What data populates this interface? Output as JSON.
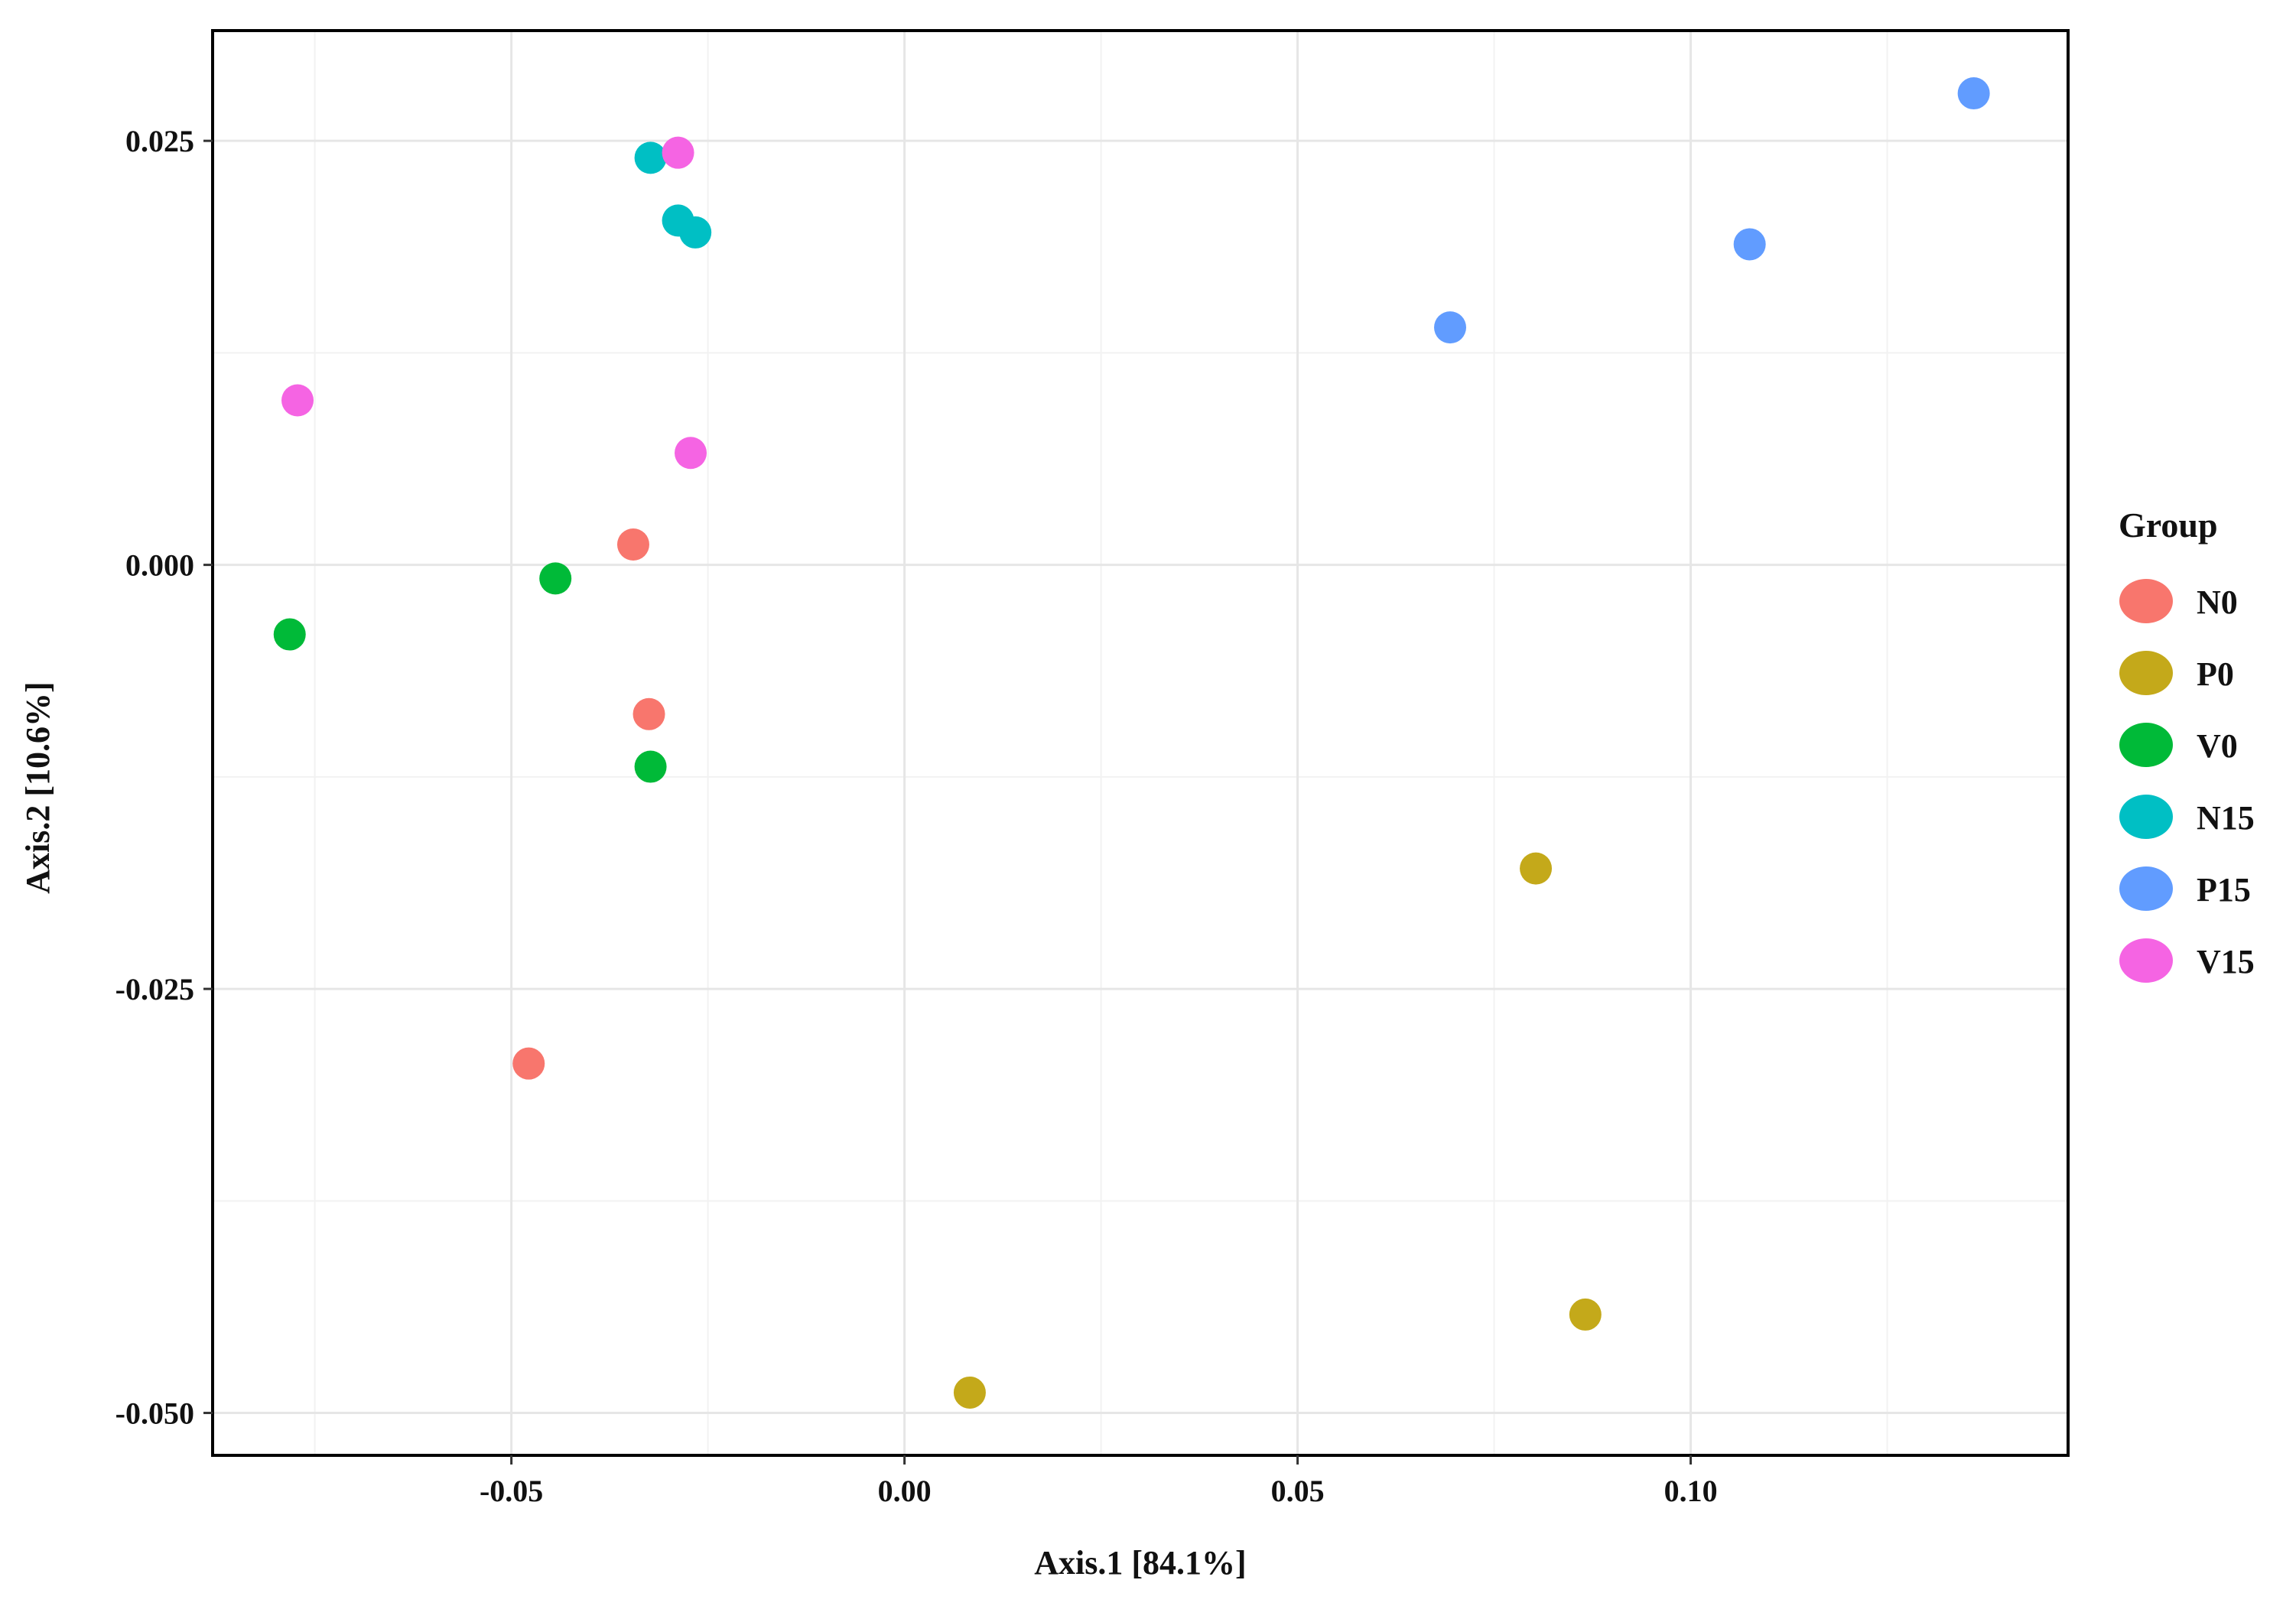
{
  "chart_data": {
    "type": "scatter",
    "xlabel": "Axis.1  [84.1%]",
    "ylabel": "Axis.2  [10.6%]",
    "xlim": [
      -0.088,
      0.148
    ],
    "ylim": [
      -0.0525,
      0.0315
    ],
    "x_ticks": [
      -0.05,
      0.0,
      0.05,
      0.1
    ],
    "x_tick_labels": [
      "-0.05",
      "0.00",
      "0.05",
      "0.10"
    ],
    "y_ticks": [
      -0.05,
      -0.025,
      0.0,
      0.025
    ],
    "y_tick_labels": [
      "-0.050",
      "-0.025",
      "0.000",
      "0.025"
    ],
    "grid": true,
    "legend_title": "Group",
    "legend_position": "right",
    "series": [
      {
        "name": "N0",
        "color": "#F8766D",
        "points": [
          [
            -0.0345,
            0.0012
          ],
          [
            -0.0325,
            -0.0088
          ],
          [
            -0.0478,
            -0.0294
          ]
        ]
      },
      {
        "name": "P0",
        "color": "#C4A91A",
        "points": [
          [
            0.0803,
            -0.0179
          ],
          [
            0.0866,
            -0.0442
          ],
          [
            0.0083,
            -0.0488
          ]
        ]
      },
      {
        "name": "V0",
        "color": "#00BA38",
        "points": [
          [
            -0.0444,
            -0.0008
          ],
          [
            -0.0782,
            -0.0041
          ],
          [
            -0.0323,
            -0.0119
          ]
        ]
      },
      {
        "name": "N15",
        "color": "#00BFC4",
        "points": [
          [
            -0.0323,
            0.024
          ],
          [
            -0.0288,
            0.0203
          ],
          [
            -0.0266,
            0.0196
          ]
        ]
      },
      {
        "name": "P15",
        "color": "#619CFF",
        "points": [
          [
            0.136,
            0.0278
          ],
          [
            0.1075,
            0.0189
          ],
          [
            0.0694,
            0.014
          ]
        ]
      },
      {
        "name": "V15",
        "color": "#F564E3",
        "points": [
          [
            -0.0288,
            0.0243
          ],
          [
            -0.0772,
            0.0097
          ],
          [
            -0.0272,
            0.0066
          ]
        ]
      }
    ]
  }
}
